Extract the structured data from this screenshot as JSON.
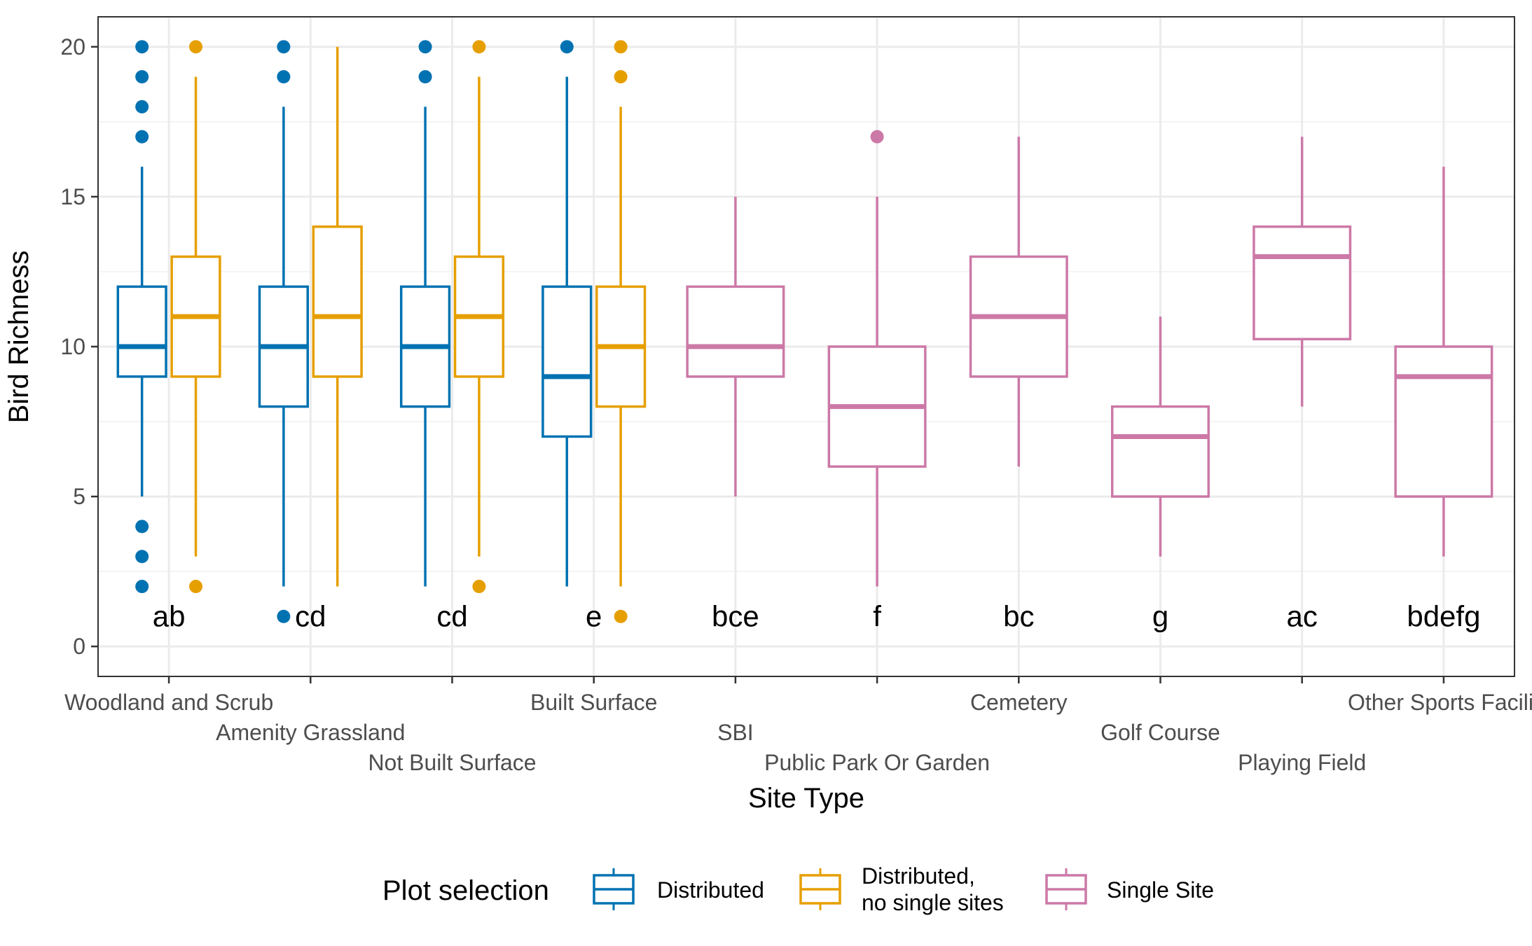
{
  "chart_data": {
    "type": "boxplot",
    "xlabel": "Site Type",
    "ylabel": "Bird Richness",
    "ylim": [
      -1,
      21
    ],
    "yticks": [
      0,
      5,
      10,
      15,
      20
    ],
    "grid": true,
    "legend": {
      "title": "Plot selection",
      "position": "bottom",
      "entries": [
        {
          "key": "distributed",
          "label": "Distributed",
          "color": "#0072B2"
        },
        {
          "key": "distributed_no_single",
          "label": "Distributed,\nno single sites",
          "color": "#E69F00"
        },
        {
          "key": "single",
          "label": "Single Site",
          "color": "#CC79A7"
        }
      ]
    },
    "categories": [
      "Woodland and Scrub",
      "Amenity Grassland",
      "Not Built Surface",
      "Built Surface",
      "SBI",
      "Public Park Or Garden",
      "Cemetery",
      "Golf Course",
      "Playing Field",
      "Other Sports Facilit"
    ],
    "letters": [
      "ab",
      "cd",
      "cd",
      "e",
      "bce",
      "f",
      "bc",
      "g",
      "ac",
      "bdefg"
    ],
    "letter_y": 1,
    "boxes": [
      {
        "category": 0,
        "group": "distributed",
        "q1": 9,
        "median": 10,
        "q3": 12,
        "whisker_low": 5,
        "whisker_high": 16,
        "outliers": [
          2,
          3,
          4,
          17,
          18,
          19,
          20
        ]
      },
      {
        "category": 0,
        "group": "distributed_no_single",
        "q1": 9,
        "median": 11,
        "q3": 13,
        "whisker_low": 3,
        "whisker_high": 19,
        "outliers": [
          2,
          20
        ]
      },
      {
        "category": 1,
        "group": "distributed",
        "q1": 8,
        "median": 10,
        "q3": 12,
        "whisker_low": 2,
        "whisker_high": 18,
        "outliers": [
          1,
          19,
          20
        ]
      },
      {
        "category": 1,
        "group": "distributed_no_single",
        "q1": 9,
        "median": 11,
        "q3": 14,
        "whisker_low": 2,
        "whisker_high": 20,
        "outliers": []
      },
      {
        "category": 2,
        "group": "distributed",
        "q1": 8,
        "median": 10,
        "q3": 12,
        "whisker_low": 2,
        "whisker_high": 18,
        "outliers": [
          19,
          20
        ]
      },
      {
        "category": 2,
        "group": "distributed_no_single",
        "q1": 9,
        "median": 11,
        "q3": 13,
        "whisker_low": 3,
        "whisker_high": 19,
        "outliers": [
          2,
          20
        ]
      },
      {
        "category": 3,
        "group": "distributed",
        "q1": 7,
        "median": 9,
        "q3": 12,
        "whisker_low": 2,
        "whisker_high": 19,
        "outliers": [
          20
        ]
      },
      {
        "category": 3,
        "group": "distributed_no_single",
        "q1": 8,
        "median": 10,
        "q3": 12,
        "whisker_low": 2,
        "whisker_high": 18,
        "outliers": [
          1,
          19,
          20
        ]
      },
      {
        "category": 4,
        "group": "single",
        "q1": 9,
        "median": 10,
        "q3": 12,
        "whisker_low": 5,
        "whisker_high": 15,
        "outliers": []
      },
      {
        "category": 5,
        "group": "single",
        "q1": 6,
        "median": 8,
        "q3": 10,
        "whisker_low": 2,
        "whisker_high": 15,
        "outliers": [
          17
        ]
      },
      {
        "category": 6,
        "group": "single",
        "q1": 9,
        "median": 11,
        "q3": 13,
        "whisker_low": 6,
        "whisker_high": 17,
        "outliers": []
      },
      {
        "category": 7,
        "group": "single",
        "q1": 5,
        "median": 7,
        "q3": 8,
        "whisker_low": 3,
        "whisker_high": 11,
        "outliers": []
      },
      {
        "category": 8,
        "group": "single",
        "q1": 10.25,
        "median": 13,
        "q3": 14,
        "whisker_low": 8,
        "whisker_high": 17,
        "outliers": []
      },
      {
        "category": 9,
        "group": "single",
        "q1": 5,
        "median": 9,
        "q3": 10,
        "whisker_low": 3,
        "whisker_high": 16,
        "outliers": []
      }
    ]
  }
}
